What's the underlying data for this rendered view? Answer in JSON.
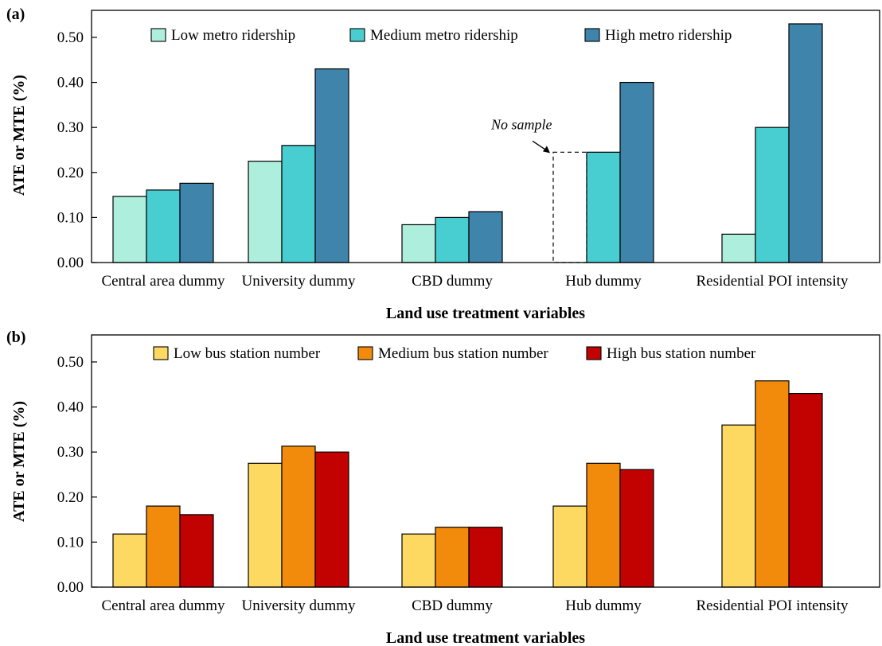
{
  "chart_data": [
    {
      "panel_label": "(a)",
      "type": "bar",
      "categories": [
        "Central area dummy",
        "University dummy",
        "CBD dummy",
        "Hub dummy",
        "Residential POI intensity"
      ],
      "series": [
        {
          "name": "Low metro ridership",
          "color": "#aeeedd",
          "values": [
            0.147,
            0.225,
            0.084,
            null,
            0.063
          ]
        },
        {
          "name": "Medium metro ridership",
          "color": "#48cdd0",
          "values": [
            0.161,
            0.26,
            0.1,
            0.245,
            0.3
          ]
        },
        {
          "name": "High metro ridership",
          "color": "#3f84aa",
          "values": [
            0.176,
            0.43,
            0.113,
            0.4,
            0.53
          ]
        }
      ],
      "yticks": [
        "0.00",
        "0.10",
        "0.20",
        "0.30",
        "0.40",
        "0.50"
      ],
      "ylim": [
        0,
        0.56
      ],
      "xlabel": "Land use treatment variables",
      "ylabel": "ATE or MTE (%)",
      "legend_position": "top",
      "grid": false,
      "annotation": {
        "text": "No sample",
        "category": "Hub dummy",
        "series_index": 0,
        "placeholder_value": 0.245
      }
    },
    {
      "panel_label": "(b)",
      "type": "bar",
      "categories": [
        "Central area dummy",
        "University dummy",
        "CBD dummy",
        "Hub dummy",
        "Residential POI intensity"
      ],
      "series": [
        {
          "name": "Low bus station number",
          "color": "#fdd962",
          "values": [
            0.118,
            0.275,
            0.118,
            0.18,
            0.36
          ]
        },
        {
          "name": "Medium bus station number",
          "color": "#f28b0c",
          "values": [
            0.18,
            0.313,
            0.133,
            0.275,
            0.458
          ]
        },
        {
          "name": "High bus station number",
          "color": "#c20200",
          "values": [
            0.161,
            0.3,
            0.133,
            0.261,
            0.43
          ]
        }
      ],
      "yticks": [
        "0.00",
        "0.10",
        "0.20",
        "0.30",
        "0.40",
        "0.50"
      ],
      "ylim": [
        0,
        0.56
      ],
      "xlabel": "Land use treatment variables",
      "ylabel": "ATE or MTE (%)",
      "legend_position": "top",
      "grid": false
    }
  ]
}
